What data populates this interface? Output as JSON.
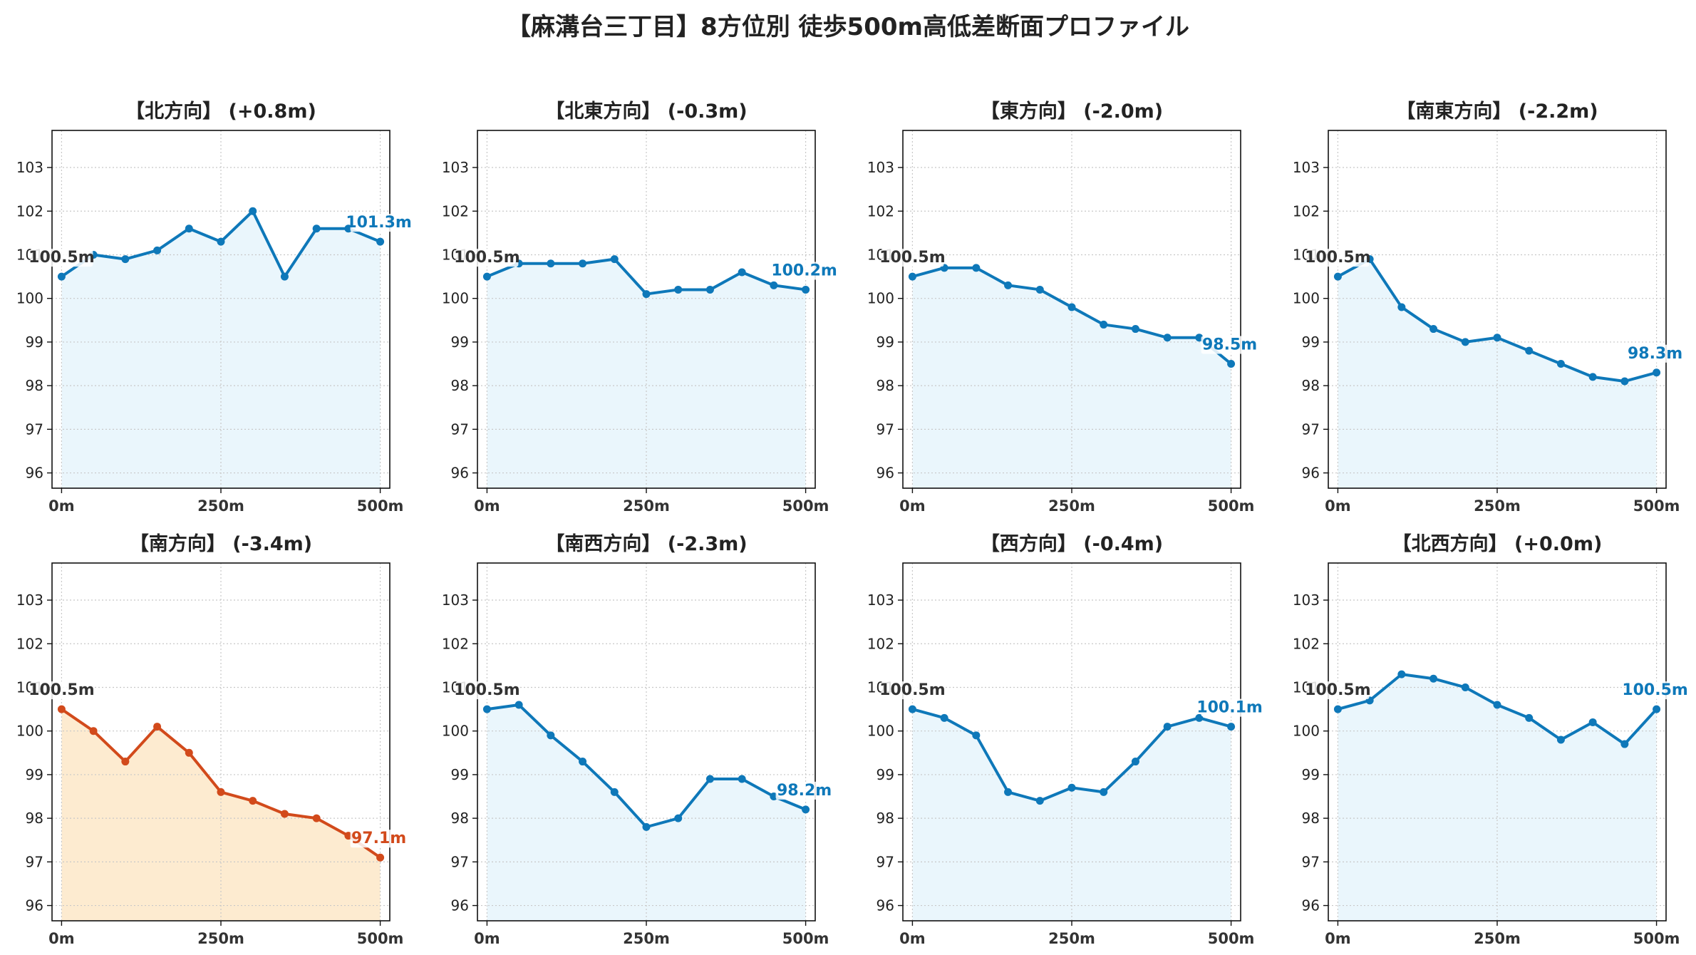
{
  "title": "【麻溝台三丁目】8方位別 徒歩500m高低差断面プロファイル",
  "colors": {
    "normal_line": "#0e78b9",
    "normal_fill": "#eaf6fc",
    "highlight_line": "#d24a1b",
    "highlight_fill": "#fdebd0",
    "start_label": "#333333",
    "grid": "#c8c8c8"
  },
  "chart_data": [
    {
      "type": "line",
      "title": "【北方向】 (+0.8m)",
      "x": [
        0,
        50,
        100,
        150,
        200,
        250,
        300,
        350,
        400,
        450,
        500
      ],
      "values": [
        100.5,
        101.0,
        100.9,
        101.1,
        101.6,
        101.3,
        102.0,
        100.5,
        101.6,
        101.6,
        101.3
      ],
      "start_label": "100.5m",
      "end_label": "101.3m",
      "highlight": false,
      "xticks": [
        "0m",
        "250m",
        "500m"
      ],
      "yticks": [
        96,
        97,
        98,
        99,
        100,
        101,
        102,
        103
      ],
      "ylim": [
        95.65,
        103.85
      ],
      "xlim": [
        -15,
        515
      ],
      "grid": true
    },
    {
      "type": "line",
      "title": "【北東方向】 (-0.3m)",
      "x": [
        0,
        50,
        100,
        150,
        200,
        250,
        300,
        350,
        400,
        450,
        500
      ],
      "values": [
        100.5,
        100.8,
        100.8,
        100.8,
        100.9,
        100.1,
        100.2,
        100.2,
        100.6,
        100.3,
        100.2
      ],
      "start_label": "100.5m",
      "end_label": "100.2m",
      "highlight": false,
      "xticks": [
        "0m",
        "250m",
        "500m"
      ],
      "yticks": [
        96,
        97,
        98,
        99,
        100,
        101,
        102,
        103
      ],
      "ylim": [
        95.65,
        103.85
      ],
      "xlim": [
        -15,
        515
      ],
      "grid": true
    },
    {
      "type": "line",
      "title": "【東方向】 (-2.0m)",
      "x": [
        0,
        50,
        100,
        150,
        200,
        250,
        300,
        350,
        400,
        450,
        500
      ],
      "values": [
        100.5,
        100.7,
        100.7,
        100.3,
        100.2,
        99.8,
        99.4,
        99.3,
        99.1,
        99.1,
        98.5
      ],
      "start_label": "100.5m",
      "end_label": "98.5m",
      "highlight": false,
      "xticks": [
        "0m",
        "250m",
        "500m"
      ],
      "yticks": [
        96,
        97,
        98,
        99,
        100,
        101,
        102,
        103
      ],
      "ylim": [
        95.65,
        103.85
      ],
      "xlim": [
        -15,
        515
      ],
      "grid": true
    },
    {
      "type": "line",
      "title": "【南東方向】 (-2.2m)",
      "x": [
        0,
        50,
        100,
        150,
        200,
        250,
        300,
        350,
        400,
        450,
        500
      ],
      "values": [
        100.5,
        100.9,
        99.8,
        99.3,
        99.0,
        99.1,
        98.8,
        98.5,
        98.2,
        98.1,
        98.3
      ],
      "start_label": "100.5m",
      "end_label": "98.3m",
      "highlight": false,
      "xticks": [
        "0m",
        "250m",
        "500m"
      ],
      "yticks": [
        96,
        97,
        98,
        99,
        100,
        101,
        102,
        103
      ],
      "ylim": [
        95.65,
        103.85
      ],
      "xlim": [
        -15,
        515
      ],
      "grid": true
    },
    {
      "type": "line",
      "title": "【南方向】 (-3.4m)",
      "x": [
        0,
        50,
        100,
        150,
        200,
        250,
        300,
        350,
        400,
        450,
        500
      ],
      "values": [
        100.5,
        100.0,
        99.3,
        100.1,
        99.5,
        98.6,
        98.4,
        98.1,
        98.0,
        97.6,
        97.1
      ],
      "start_label": "100.5m",
      "end_label": "97.1m",
      "highlight": true,
      "xticks": [
        "0m",
        "250m",
        "500m"
      ],
      "yticks": [
        96,
        97,
        98,
        99,
        100,
        101,
        102,
        103
      ],
      "ylim": [
        95.65,
        103.85
      ],
      "xlim": [
        -15,
        515
      ],
      "grid": true
    },
    {
      "type": "line",
      "title": "【南西方向】 (-2.3m)",
      "x": [
        0,
        50,
        100,
        150,
        200,
        250,
        300,
        350,
        400,
        450,
        500
      ],
      "values": [
        100.5,
        100.6,
        99.9,
        99.3,
        98.6,
        97.8,
        98.0,
        98.9,
        98.9,
        98.5,
        98.2
      ],
      "start_label": "100.5m",
      "end_label": "98.2m",
      "highlight": false,
      "xticks": [
        "0m",
        "250m",
        "500m"
      ],
      "yticks": [
        96,
        97,
        98,
        99,
        100,
        101,
        102,
        103
      ],
      "ylim": [
        95.65,
        103.85
      ],
      "xlim": [
        -15,
        515
      ],
      "grid": true
    },
    {
      "type": "line",
      "title": "【西方向】 (-0.4m)",
      "x": [
        0,
        50,
        100,
        150,
        200,
        250,
        300,
        350,
        400,
        450,
        500
      ],
      "values": [
        100.5,
        100.3,
        99.9,
        98.6,
        98.4,
        98.7,
        98.6,
        99.3,
        100.1,
        100.3,
        100.1
      ],
      "start_label": "100.5m",
      "end_label": "100.1m",
      "highlight": false,
      "xticks": [
        "0m",
        "250m",
        "500m"
      ],
      "yticks": [
        96,
        97,
        98,
        99,
        100,
        101,
        102,
        103
      ],
      "ylim": [
        95.65,
        103.85
      ],
      "xlim": [
        -15,
        515
      ],
      "grid": true
    },
    {
      "type": "line",
      "title": "【北西方向】 (+0.0m)",
      "x": [
        0,
        50,
        100,
        150,
        200,
        250,
        300,
        350,
        400,
        450,
        500
      ],
      "values": [
        100.5,
        100.7,
        101.3,
        101.2,
        101.0,
        100.6,
        100.3,
        99.8,
        100.2,
        99.7,
        100.5
      ],
      "start_label": "100.5m",
      "end_label": "100.5m",
      "highlight": false,
      "xticks": [
        "0m",
        "250m",
        "500m"
      ],
      "yticks": [
        96,
        97,
        98,
        99,
        100,
        101,
        102,
        103
      ],
      "ylim": [
        95.65,
        103.85
      ],
      "xlim": [
        -15,
        515
      ],
      "grid": true
    }
  ]
}
